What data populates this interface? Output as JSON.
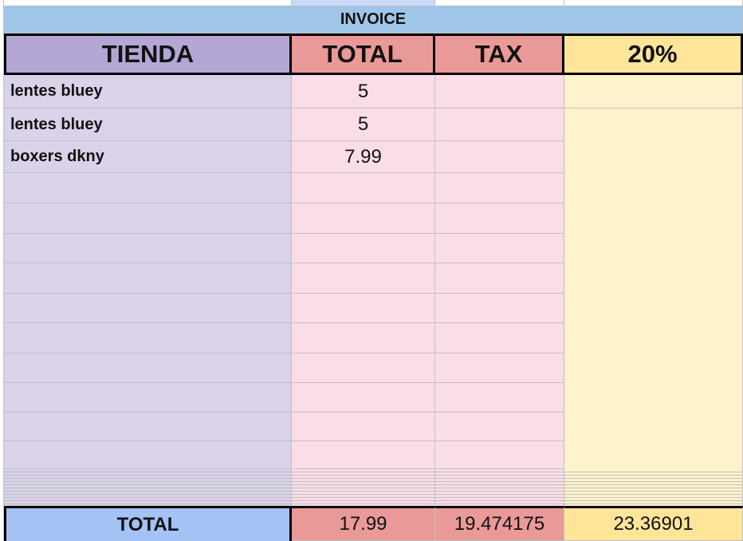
{
  "sheet": {
    "title": "INVOICE",
    "headers": [
      "TIENDA",
      "TOTAL",
      "TAX",
      "20%"
    ],
    "items": [
      {
        "name": "lentes bluey",
        "total": 5
      },
      {
        "name": "lentes bluey",
        "total": 5
      },
      {
        "name": "boxers dkny",
        "total": 7.99
      }
    ],
    "totals": {
      "label": "TOTAL",
      "total": 17.99,
      "tax": 19.474175,
      "with_rate": 23.36901
    }
  }
}
